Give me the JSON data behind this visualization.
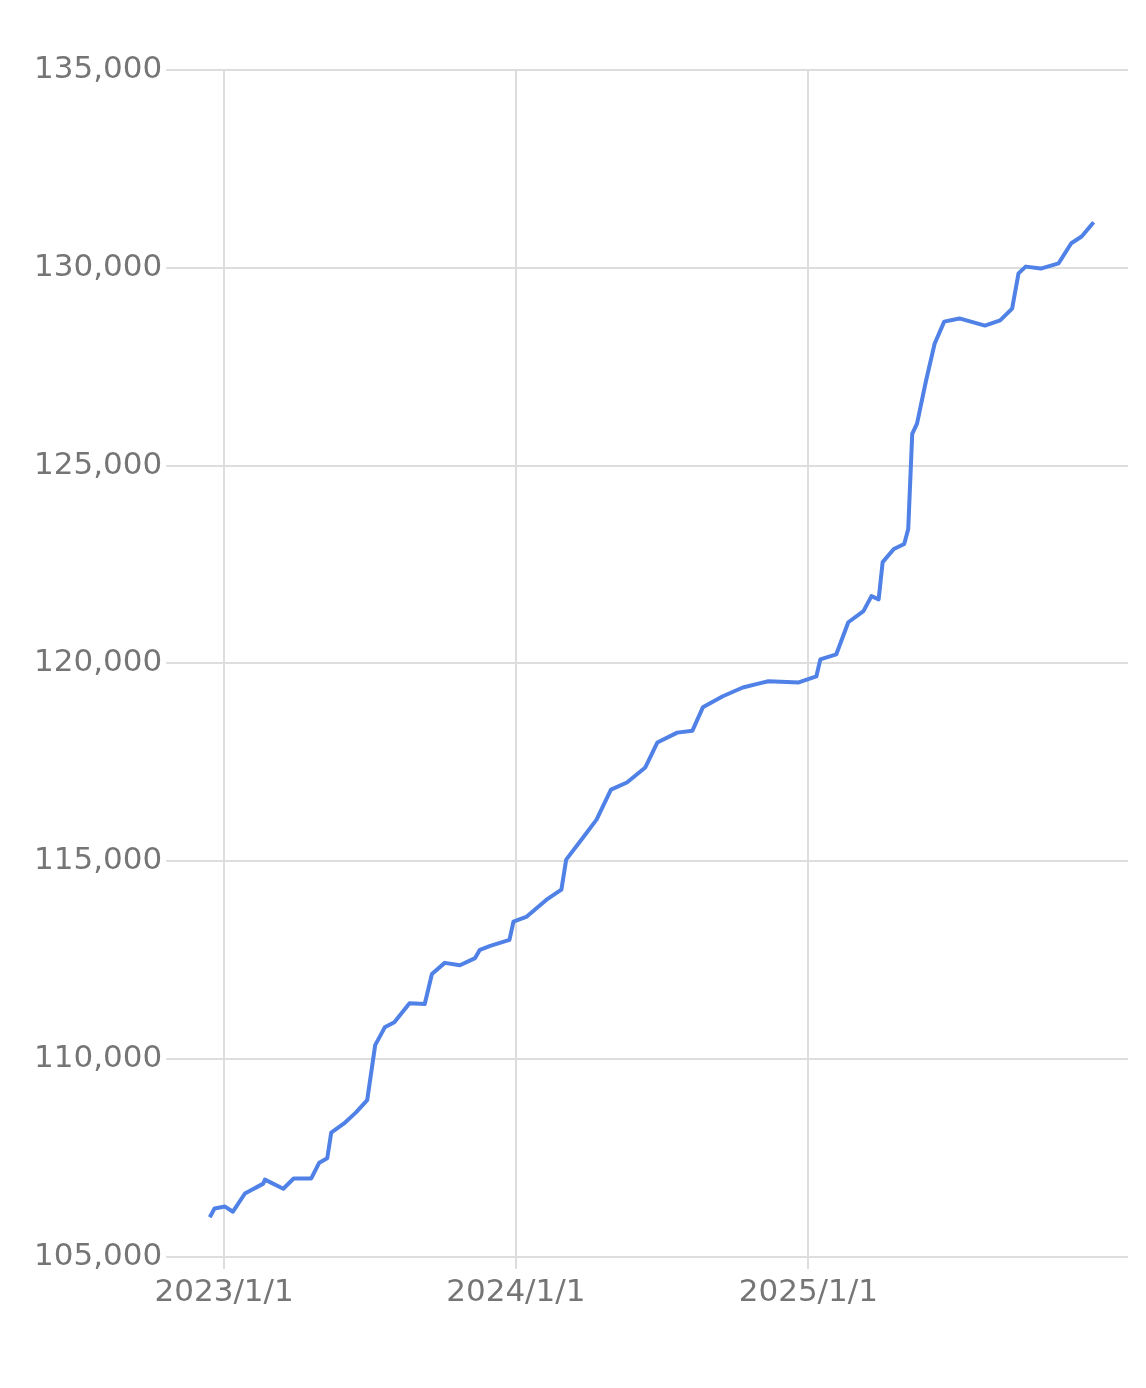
{
  "chart_data": {
    "type": "line",
    "x": [
      "2022-12-14",
      "2022-12-20",
      "2023-01-02",
      "2023-01-12",
      "2023-01-27",
      "2023-02-19",
      "2023-02-21",
      "2023-03-16",
      "2023-03-29",
      "2023-04-20",
      "2023-04-30",
      "2023-05-10",
      "2023-05-15",
      "2023-05-31",
      "2023-06-15",
      "2023-06-29",
      "2023-07-09",
      "2023-07-21",
      "2023-08-02",
      "2023-08-21",
      "2023-09-09",
      "2023-09-18",
      "2023-10-04",
      "2023-10-23",
      "2023-11-11",
      "2023-11-17",
      "2023-11-30",
      "2023-12-24",
      "2023-12-29",
      "2024-01-14",
      "2024-02-08",
      "2024-02-27",
      "2024-03-04",
      "2024-03-23",
      "2024-04-11",
      "2024-04-29",
      "2024-05-19",
      "2024-06-11",
      "2024-06-26",
      "2024-07-21",
      "2024-08-09",
      "2024-08-22",
      "2024-09-16",
      "2024-10-11",
      "2024-11-12",
      "2024-12-20",
      "2025-01-11",
      "2025-01-16",
      "2025-02-05",
      "2025-02-20",
      "2025-03-11",
      "2025-03-21",
      "2025-03-30",
      "2025-04-04",
      "2025-04-18",
      "2025-05-01",
      "2025-05-06",
      "2025-05-11",
      "2025-05-17",
      "2025-05-28",
      "2025-06-08",
      "2025-06-20",
      "2025-07-09",
      "2025-08-10",
      "2025-08-29",
      "2025-09-13",
      "2025-09-21",
      "2025-09-30",
      "2025-10-19",
      "2025-11-10",
      "2025-11-26",
      "2025-12-09",
      "2025-12-24"
    ],
    "series": [
      {
        "color": "#4f81e6",
        "values": [
          106000,
          106220,
          106270,
          106140,
          106600,
          106850,
          106950,
          106720,
          106980,
          106980,
          107380,
          107490,
          108140,
          108370,
          108650,
          108960,
          110350,
          110800,
          110930,
          111410,
          111390,
          112150,
          112430,
          112370,
          112550,
          112760,
          112860,
          113010,
          113470,
          113590,
          114020,
          114280,
          115040,
          115540,
          116050,
          116810,
          116990,
          117370,
          118000,
          118250,
          118300,
          118890,
          119170,
          119390,
          119550,
          119520,
          119670,
          120100,
          120230,
          121040,
          121320,
          121700,
          121620,
          122560,
          122890,
          123020,
          123400,
          125800,
          126060,
          127120,
          128080,
          128640,
          128720,
          128540,
          128670,
          128970,
          129860,
          130030,
          129980,
          130110,
          130620,
          130790,
          131150
        ]
      }
    ],
    "xlim": [
      "2022-11-02",
      "2026-02-05"
    ],
    "xticks": [
      {
        "value": "2023-01-01",
        "label": "2023/1/1"
      },
      {
        "value": "2024-01-01",
        "label": "2024/1/1"
      },
      {
        "value": "2025-01-01",
        "label": "2025/1/1"
      }
    ],
    "ylim": [
      105000,
      135000
    ],
    "yticks": [
      {
        "value": 105000,
        "label": "105,000"
      },
      {
        "value": 110000,
        "label": "110,000"
      },
      {
        "value": 115000,
        "label": "115,000"
      },
      {
        "value": 120000,
        "label": "120,000"
      },
      {
        "value": 125000,
        "label": "125,000"
      },
      {
        "value": 130000,
        "label": "130,000"
      },
      {
        "value": 135000,
        "label": "135,000"
      }
    ],
    "grid": true,
    "legend": false,
    "marker": "none",
    "line_style": "solid"
  }
}
